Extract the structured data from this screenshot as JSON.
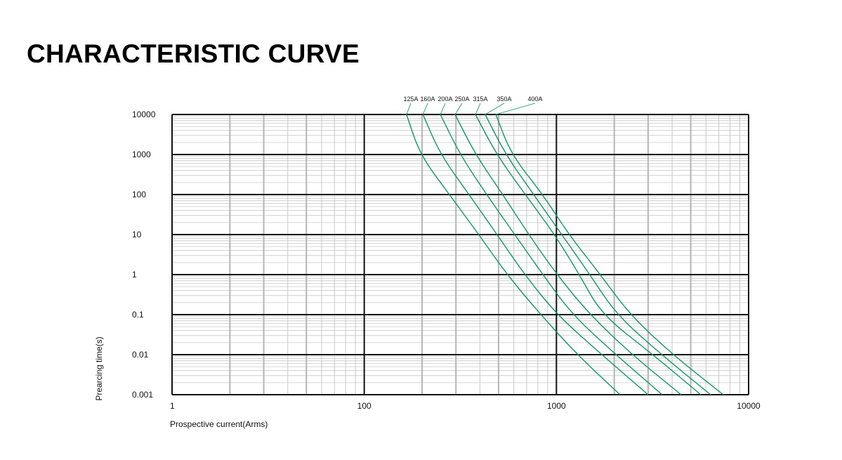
{
  "chart_data": {
    "type": "line",
    "title": "CHARACTERISTIC CURVE",
    "xlabel": "Prospective current(Arms)",
    "ylabel": "Prearcing time(s)",
    "x_scale": "log",
    "y_scale": "log",
    "xlim": [
      10,
      10000
    ],
    "ylim": [
      0.001,
      10000
    ],
    "x_tick_labels": [
      "1",
      "100",
      "1000",
      "10000"
    ],
    "y_tick_labels": [
      "10000",
      "1000",
      "100",
      "10",
      "1",
      "0.1",
      "0.01",
      "0.001"
    ],
    "grid": true,
    "line_color": "#12946a",
    "legend_placement": "top, labels on leader lines",
    "y": [
      10000,
      1000,
      100,
      10,
      1,
      0.1,
      0.01,
      0.001
    ],
    "series": [
      {
        "name": "125A",
        "x": [
          166,
          195,
          277,
          395,
          553,
          828,
          1283,
          2143
        ]
      },
      {
        "name": "160A",
        "x": [
          202,
          249,
          351,
          491,
          683,
          1005,
          1722,
          3000
        ]
      },
      {
        "name": "200A",
        "x": [
          249,
          315,
          433,
          607,
          850,
          1209,
          2038,
          3550
        ]
      },
      {
        "name": "250A",
        "x": [
          297,
          379,
          526,
          718,
          1005,
          1492,
          2473,
          4456
        ]
      },
      {
        "name": "315A",
        "x": [
          379,
          488,
          688,
          980,
          1316,
          1722,
          3182,
          5639
        ]
      },
      {
        "name": "350A",
        "x": [
          426,
          544,
          761,
          1066,
          1492,
          2054,
          3521,
          6343
        ]
      },
      {
        "name": "400A",
        "x": [
          484,
          582,
          850,
          1160,
          1693,
          2411,
          4027,
          7383
        ]
      }
    ]
  }
}
